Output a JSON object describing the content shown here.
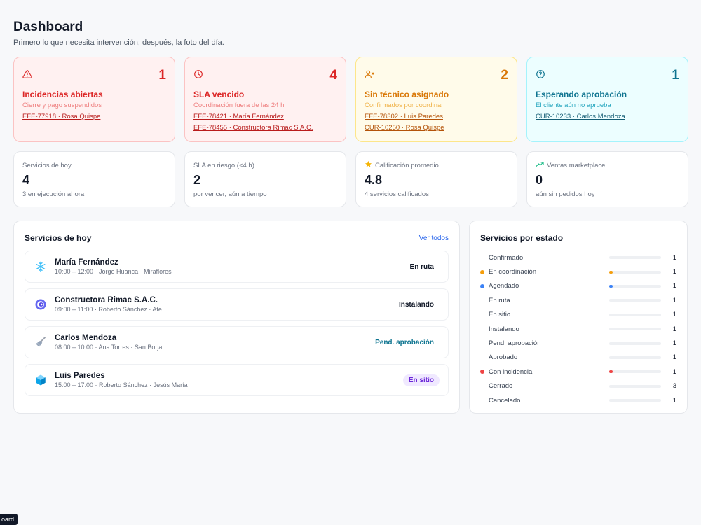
{
  "header": {
    "title": "Dashboard",
    "subtitle": "Primero lo que necesita intervención; después, la foto del día."
  },
  "alerts": [
    {
      "icon": "warning-triangle-icon",
      "count": "1",
      "title": "Incidencias abiertas",
      "subtitle": "Cierre y pago suspendidos",
      "links": [
        "EFE-77918 · Rosa Quispe"
      ],
      "color": "#dc2626"
    },
    {
      "icon": "clock-icon",
      "count": "4",
      "title": "SLA vencido",
      "subtitle": "Coordinación fuera de las 24 h",
      "links": [
        "EFE-78421 · María Fernández",
        "EFE-78455 · Constructora Rimac S.A.C."
      ],
      "color": "#dc2626"
    },
    {
      "icon": "user-x-icon",
      "count": "2",
      "title": "Sin técnico asignado",
      "subtitle": "Confirmados por coordinar",
      "links": [
        "EFE-78302 · Luis Paredes",
        "CUR-10250 · Rosa Quispe"
      ],
      "color": "#d97706"
    },
    {
      "icon": "help-circle-icon",
      "count": "1",
      "title": "Esperando aprobación",
      "subtitle": "El cliente aún no aprueba",
      "links": [
        "CUR-10233 · Carlos Mendoza"
      ],
      "color": "#0e7490"
    }
  ],
  "kpis": [
    {
      "label": "Servicios de hoy",
      "value": "4",
      "sub": "3 en ejecución ahora",
      "icon": ""
    },
    {
      "label": "SLA en riesgo (<4 h)",
      "value": "2",
      "sub": "por vencer, aún a tiempo",
      "icon": ""
    },
    {
      "label": "Calificación promedio",
      "value": "4.8",
      "sub": "4 servicios calificados",
      "icon": "star-icon"
    },
    {
      "label": "Ventas marketplace",
      "value": "0",
      "sub": "aún sin pedidos hoy",
      "icon": "trending-up-icon"
    }
  ],
  "services_today": {
    "title": "Servicios de hoy",
    "see_all": "Ver todos",
    "items": [
      {
        "icon": "snowflake-icon",
        "name": "María Fernández",
        "meta": "10:00 – 12:00 · Jorge Huanca · Miraflores",
        "status": "En ruta"
      },
      {
        "icon": "spiral-icon",
        "name": "Constructora Rimac S.A.C.",
        "meta": "09:00 – 11:00 · Roberto Sánchez · Ate",
        "status": "Instalando"
      },
      {
        "icon": "broom-icon",
        "name": "Carlos Mendoza",
        "meta": "08:00 – 10:00 · Ana Torres · San Borja",
        "status": "Pend. aprobación"
      },
      {
        "icon": "cube-icon",
        "name": "Luis Paredes",
        "meta": "15:00 – 17:00 · Roberto Sánchez · Jesús María",
        "status": "En sitio"
      }
    ]
  },
  "states": {
    "title": "Servicios por estado",
    "items": [
      {
        "name": "Confirmado",
        "count": "1",
        "dot": ""
      },
      {
        "name": "En coordinación",
        "count": "1",
        "dot": "#f59e0b"
      },
      {
        "name": "Agendado",
        "count": "1",
        "dot": "#3b82f6"
      },
      {
        "name": "En ruta",
        "count": "1",
        "dot": ""
      },
      {
        "name": "En sitio",
        "count": "1",
        "dot": ""
      },
      {
        "name": "Instalando",
        "count": "1",
        "dot": ""
      },
      {
        "name": "Pend. aprobación",
        "count": "1",
        "dot": ""
      },
      {
        "name": "Aprobado",
        "count": "1",
        "dot": ""
      },
      {
        "name": "Con incidencia",
        "count": "1",
        "dot": "#ef4444"
      },
      {
        "name": "Cerrado",
        "count": "3",
        "dot": ""
      },
      {
        "name": "Cancelado",
        "count": "1",
        "dot": ""
      }
    ]
  },
  "footer_tag": "oard"
}
